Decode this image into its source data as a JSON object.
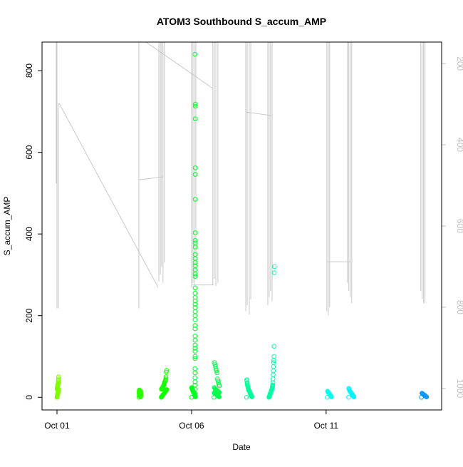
{
  "chart_data": {
    "type": "scatter",
    "title": "ATOM3 Southbound S_accum_AMP",
    "xlabel": "Date",
    "ylabel": "S_accum_AMP",
    "xlim": [
      "Sep 30 10:40",
      "Oct 15 07:00"
    ],
    "ylim": [
      -31,
      870
    ],
    "x_ticks": [
      {
        "date": "Oct 01 00:00",
        "label": "Oct 01"
      },
      {
        "date": "Oct 06 00:00",
        "label": "Oct 06"
      },
      {
        "date": "Oct 11 00:00",
        "label": "Oct 11"
      }
    ],
    "y_ticks": [
      0,
      200,
      400,
      600,
      800
    ],
    "grid": false,
    "marker": "open-circle",
    "clusters": [
      {
        "date": "Oct 01 00:00",
        "span_hours": 1.5,
        "color": "#7fff00",
        "values": [
          0,
          1,
          2,
          3,
          4,
          5,
          6,
          7,
          8,
          9,
          10,
          11,
          12,
          13,
          14,
          15,
          16,
          17,
          18,
          19,
          20,
          21,
          22,
          23,
          24,
          25,
          26,
          27,
          28,
          29,
          30,
          31,
          32,
          33,
          35,
          38,
          42,
          45,
          50
        ]
      },
      {
        "date": "Oct 04 01:00",
        "span_hours": 2,
        "color": "#2aff00",
        "values": [
          0,
          1,
          2,
          3,
          4,
          5,
          6,
          7,
          8,
          9,
          10,
          11,
          12,
          13,
          14,
          15,
          16,
          17,
          18
        ]
      },
      {
        "date": "Oct 04 21:00",
        "span_hours": 5,
        "color": "#15ff00",
        "values": [
          0,
          1,
          2,
          3,
          4,
          5,
          6,
          7,
          8,
          9,
          10,
          11,
          12,
          13,
          14,
          15,
          16,
          17,
          18,
          19,
          20,
          21,
          22,
          23,
          24,
          25,
          26,
          28,
          30,
          32,
          34,
          36,
          38,
          40,
          42,
          45,
          50,
          62,
          66
        ]
      },
      {
        "date": "Oct 06 00:00",
        "span_hours": 3.5,
        "color": "#00ff1a",
        "values": [
          0,
          1,
          2,
          3,
          4,
          5,
          6,
          7,
          8,
          9,
          10,
          11,
          12,
          13,
          14,
          15,
          16,
          17,
          18,
          19,
          20,
          21,
          22,
          24
        ]
      },
      {
        "date": "Oct 06 03:00",
        "span_hours": 0.3,
        "color": "#00ff2a",
        "values": [
          840,
          718,
          713,
          682,
          562,
          546,
          485,
          403,
          384,
          378,
          368,
          350,
          340,
          330,
          322,
          312,
          302,
          296,
          268,
          255,
          245,
          236,
          228,
          220,
          210,
          200,
          190,
          176,
          168,
          150,
          140,
          128,
          120,
          113,
          100,
          95,
          70,
          60,
          48,
          38,
          30,
          20,
          10,
          5
        ]
      },
      {
        "date": "Oct 06 20:00",
        "span_hours": 5,
        "color": "#00ff4a",
        "values": [
          0,
          1,
          2,
          3,
          4,
          5,
          6,
          7,
          8,
          9,
          10,
          11,
          12,
          13,
          14,
          15,
          16,
          17,
          18,
          19,
          20,
          22,
          24,
          28,
          32,
          36,
          40,
          45,
          60,
          65,
          70,
          75,
          80,
          85
        ]
      },
      {
        "date": "Oct 08 01:00",
        "span_hours": 5,
        "color": "#00ff99",
        "values": [
          0,
          1,
          2,
          3,
          4,
          5,
          6,
          7,
          8,
          9,
          10,
          11,
          12,
          13,
          14,
          15,
          16,
          17,
          18,
          19,
          20,
          22,
          24,
          26,
          28,
          30,
          33,
          36,
          40,
          43
        ]
      },
      {
        "date": "Oct 08 21:00",
        "span_hours": 5,
        "color": "#00ffa5",
        "values": [
          0,
          1,
          2,
          3,
          4,
          5,
          6,
          7,
          8,
          9,
          10,
          11,
          12,
          13,
          14,
          15,
          16,
          17,
          18,
          19,
          20,
          22,
          24,
          26,
          28,
          30,
          36,
          45,
          55,
          65,
          75,
          85,
          90,
          100,
          125,
          305,
          320
        ]
      },
      {
        "date": "Oct 11 01:00",
        "span_hours": 4,
        "color": "#00ffee",
        "values": [
          0,
          1,
          2,
          3,
          4,
          5,
          6,
          7,
          8,
          9,
          10,
          11,
          12,
          13,
          14,
          15
        ]
      },
      {
        "date": "Oct 11 20:00",
        "span_hours": 5,
        "color": "#00f5ff",
        "values": [
          0,
          1,
          2,
          3,
          4,
          5,
          6,
          7,
          8,
          9,
          10,
          11,
          12,
          13,
          14,
          15,
          16,
          18,
          20,
          22
        ]
      },
      {
        "date": "Oct 14 13:00",
        "span_hours": 5,
        "color": "#0099ff",
        "values": [
          0,
          1,
          2,
          3,
          4,
          5,
          6,
          7,
          8,
          9,
          10
        ]
      }
    ],
    "secondary_axis": {
      "side": "right",
      "color": "#c0c0c0",
      "ylim": [
        1053,
        147
      ],
      "inverted": true,
      "y_ticks": [
        200,
        400,
        600,
        800,
        1000
      ],
      "line_color": "#c8c8c8",
      "segments": [
        [
          "Oct 01 00:00",
          147,
          "Oct 01 00:00",
          803
        ],
        [
          "Sep 30 23:20",
          147,
          "Sep 30 23:20",
          495
        ],
        [
          "Oct 01 01:15",
          298,
          "Oct 01 01:15",
          803
        ],
        [
          "Oct 01 02:00",
          298,
          "Oct 04 18:10",
          751
        ],
        [
          "Oct 04 01:00",
          147,
          "Oct 04 01:00",
          803
        ],
        [
          "Oct 04 01:00",
          486,
          "Oct 04 22:35",
          479
        ],
        [
          "Oct 04 18:50",
          147,
          "Oct 04 18:50",
          737
        ],
        [
          "Oct 04 20:10",
          147,
          "Oct 04 20:10",
          720
        ],
        [
          "Oct 04 21:20",
          147,
          "Oct 04 21:20",
          700
        ],
        [
          "Oct 04 22:35",
          147,
          "Oct 04 22:35",
          740
        ],
        [
          "Oct 04 23:50",
          147,
          "Oct 04 23:50",
          690
        ],
        [
          "Oct 04 07:20",
          147,
          "Oct 06 18:25",
          260
        ],
        [
          "Oct 06 00:00",
          147,
          "Oct 06 00:00",
          751
        ],
        [
          "Oct 06 01:15",
          147,
          "Oct 06 01:15",
          740
        ],
        [
          "Oct 06 02:30",
          147,
          "Oct 06 02:30",
          745
        ],
        [
          "Oct 06 03:50",
          147,
          "Oct 06 03:50",
          730
        ],
        [
          "Oct 06 00:40",
          745,
          "Oct 06 19:45",
          745
        ],
        [
          "Oct 06 19:00",
          147,
          "Oct 06 19:00",
          745
        ],
        [
          "Oct 06 20:20",
          147,
          "Oct 06 20:20",
          730
        ],
        [
          "Oct 06 21:40",
          147,
          "Oct 06 21:40",
          748
        ],
        [
          "Oct 06 23:30",
          147,
          "Oct 06 23:30",
          740
        ],
        [
          "Oct 08 00:20",
          147,
          "Oct 08 00:20",
          810
        ],
        [
          "Oct 08 01:35",
          147,
          "Oct 08 01:35",
          795
        ],
        [
          "Oct 08 03:30",
          147,
          "Oct 08 03:30",
          818
        ],
        [
          "Oct 08 04:50",
          147,
          "Oct 08 04:50",
          780
        ],
        [
          "Oct 08 00:20",
          319,
          "Oct 08 23:10",
          328
        ],
        [
          "Oct 08 20:00",
          147,
          "Oct 08 20:00",
          795
        ],
        [
          "Oct 08 21:15",
          147,
          "Oct 08 21:15",
          775
        ],
        [
          "Oct 08 22:30",
          147,
          "Oct 08 22:30",
          760
        ],
        [
          "Oct 08 23:50",
          147,
          "Oct 08 23:50",
          785
        ],
        [
          "Oct 11 00:40",
          147,
          "Oct 11 00:40",
          810
        ],
        [
          "Oct 11 01:55",
          147,
          "Oct 11 01:55",
          820
        ],
        [
          "Oct 11 03:10",
          147,
          "Oct 11 03:10",
          800
        ],
        [
          "Oct 11 01:00",
          688,
          "Oct 11 22:00",
          688
        ],
        [
          "Oct 11 19:00",
          147,
          "Oct 11 19:00",
          740
        ],
        [
          "Oct 11 20:15",
          147,
          "Oct 11 20:15",
          760
        ],
        [
          "Oct 11 21:30",
          147,
          "Oct 11 21:30",
          775
        ],
        [
          "Oct 11 22:50",
          147,
          "Oct 11 22:50",
          790
        ],
        [
          "Oct 14 12:25",
          147,
          "Oct 14 12:25",
          760
        ],
        [
          "Oct 14 13:40",
          147,
          "Oct 14 13:40",
          780
        ],
        [
          "Oct 14 14:55",
          147,
          "Oct 14 14:55",
          790
        ],
        [
          "Oct 14 16:10",
          147,
          "Oct 14 16:10",
          790
        ]
      ]
    }
  }
}
